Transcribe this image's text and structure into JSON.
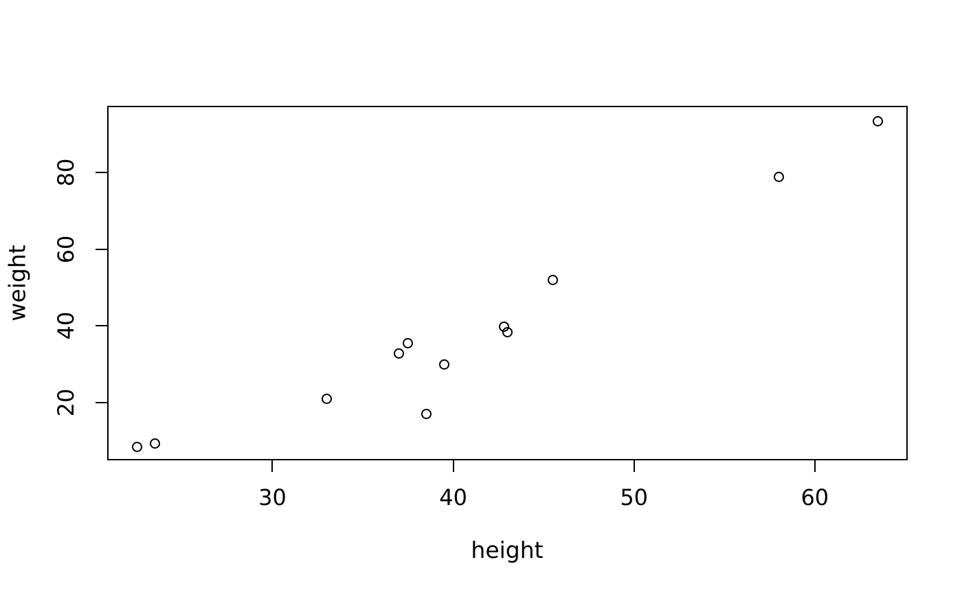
{
  "figure": {
    "background_color": "#ffffff",
    "foreground_color": "#000000"
  },
  "chart_data": {
    "type": "scatter",
    "title": "",
    "xlabel": "height",
    "ylabel": "weight",
    "x": [
      22.5,
      23.5,
      33.0,
      37.0,
      37.5,
      38.5,
      39.5,
      42.8,
      43.0,
      45.5,
      58.0,
      63.5
    ],
    "y": [
      8.4,
      9.4,
      20.9,
      32.7,
      35.4,
      17.0,
      29.9,
      39.7,
      38.3,
      51.9,
      78.9,
      93.3
    ],
    "x_ticks": [
      30,
      40,
      50,
      60
    ],
    "y_ticks": [
      20,
      40,
      60,
      80
    ],
    "xlim": [
      20.9,
      65.1
    ],
    "ylim": [
      5.1,
      97.2
    ],
    "grid": false,
    "legend": null,
    "marker": "open-circle",
    "marker_color": "#000000",
    "point_count": 12
  }
}
